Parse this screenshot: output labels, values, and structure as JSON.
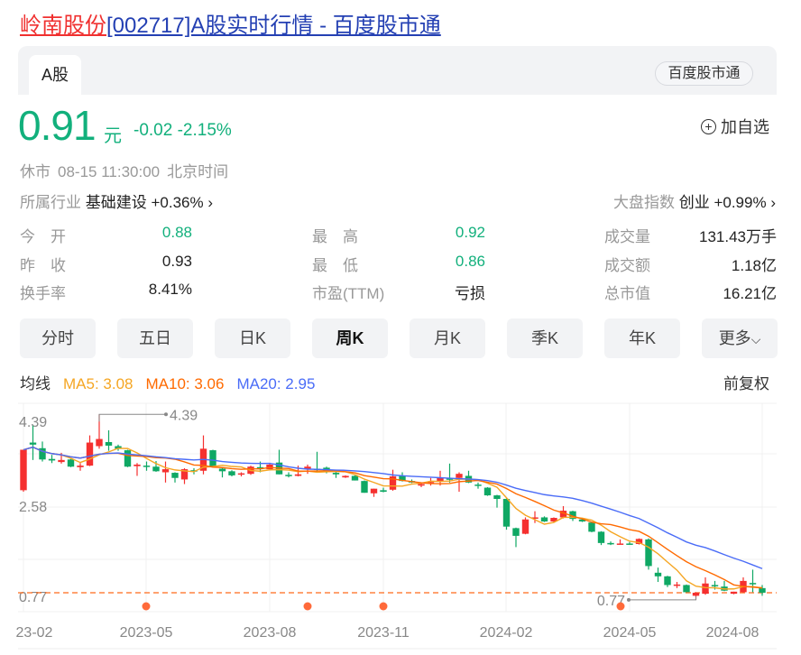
{
  "title": {
    "name": "岭南股份",
    "rest": "[002717]A股实时行情 - 百度股市通"
  },
  "tabs": {
    "active": "A股",
    "badge": "百度股市通"
  },
  "quote": {
    "price": "0.91",
    "unit": "元",
    "change": "-0.02",
    "change_pct": "-2.15%",
    "add_watch": "加自选",
    "add_icon": "plus-circle-icon"
  },
  "status": {
    "state": "休市",
    "time": "08-15 11:30:00",
    "zone": "北京时间"
  },
  "industry": {
    "label": "所属行业",
    "name": "基础建设",
    "change": "+0.36%"
  },
  "index": {
    "label": "大盘指数",
    "name": "创业",
    "change": "+0.99%"
  },
  "stats": [
    [
      {
        "label": "今　开",
        "value": "0.88",
        "color": "green"
      },
      {
        "label": "最　高",
        "value": "0.92",
        "color": "green"
      },
      {
        "label": "成交量",
        "value": "131.43万手",
        "color": "dark"
      }
    ],
    [
      {
        "label": "昨　收",
        "value": "0.93",
        "color": "dark"
      },
      {
        "label": "最　低",
        "value": "0.86",
        "color": "green"
      },
      {
        "label": "成交额",
        "value": "1.18亿",
        "color": "dark"
      }
    ],
    [
      {
        "label": "换手率",
        "value": "8.41%",
        "color": "dark"
      },
      {
        "label": "市盈(TTM)",
        "value": "亏损",
        "color": "dark"
      },
      {
        "label": "总市值",
        "value": "16.21亿",
        "color": "dark"
      }
    ]
  ],
  "periods": [
    "分时",
    "五日",
    "日K",
    "周K",
    "月K",
    "季K",
    "年K",
    "更多"
  ],
  "active_period": "周K",
  "ma_legend": {
    "label": "均线",
    "ma5": "MA5: 3.08",
    "ma10": "MA10: 3.06",
    "ma20": "MA20: 2.95",
    "adjust": "前复权"
  },
  "colors": {
    "up": "#f5302f",
    "down": "#0fa864",
    "ma5": "#f5a623",
    "ma10": "#ff6a00",
    "ma20": "#4a6cf7",
    "price_green": "#12b07c",
    "title_red": "#f0302f",
    "title_blue": "#2440b3"
  },
  "chart_data": {
    "type": "candlestick",
    "period": "weekly",
    "y_ticks": [
      "4.39",
      "2.58",
      "0.77"
    ],
    "x_ticks": [
      "23-02",
      "2023-05",
      "2023-08",
      "2023-11",
      "2024-02",
      "2024-05",
      "2024-08"
    ],
    "max_marker": "4.39",
    "min_marker": "0.77",
    "current_price_line": 0.91,
    "ylim": [
      0.77,
      4.39
    ],
    "columns": [
      "open",
      "high",
      "low",
      "close"
    ],
    "candles": [
      [
        2.91,
        3.7,
        2.88,
        3.7
      ],
      [
        3.84,
        4.17,
        3.5,
        3.8
      ],
      [
        3.73,
        3.86,
        3.47,
        3.51
      ],
      [
        3.52,
        3.6,
        3.44,
        3.49
      ],
      [
        3.46,
        3.64,
        3.43,
        3.5
      ],
      [
        3.51,
        3.52,
        3.36,
        3.37
      ],
      [
        3.36,
        3.44,
        3.29,
        3.39
      ],
      [
        3.39,
        3.98,
        3.38,
        3.84
      ],
      [
        3.77,
        4.39,
        3.72,
        3.91
      ],
      [
        3.85,
        4.08,
        3.68,
        3.78
      ],
      [
        3.77,
        3.8,
        3.68,
        3.72
      ],
      [
        3.69,
        3.7,
        3.36,
        3.37
      ],
      [
        3.38,
        3.44,
        3.19,
        3.41
      ],
      [
        3.39,
        3.47,
        3.29,
        3.37
      ],
      [
        3.37,
        3.48,
        3.27,
        3.28
      ],
      [
        3.26,
        3.47,
        3.06,
        3.32
      ],
      [
        3.25,
        3.26,
        3.06,
        3.15
      ],
      [
        3.12,
        3.34,
        3.03,
        3.32
      ],
      [
        3.3,
        3.34,
        3.22,
        3.29
      ],
      [
        3.29,
        3.98,
        3.22,
        3.72
      ],
      [
        3.69,
        3.7,
        3.37,
        3.38
      ],
      [
        3.33,
        3.36,
        3.16,
        3.28
      ],
      [
        3.28,
        3.3,
        3.18,
        3.2
      ],
      [
        3.22,
        3.26,
        3.18,
        3.24
      ],
      [
        3.23,
        3.39,
        3.21,
        3.37
      ],
      [
        3.36,
        3.47,
        3.26,
        3.32
      ],
      [
        3.32,
        3.44,
        3.3,
        3.41
      ],
      [
        3.45,
        3.7,
        3.22,
        3.22
      ],
      [
        3.21,
        3.26,
        3.16,
        3.19
      ],
      [
        3.19,
        3.39,
        3.18,
        3.22
      ],
      [
        3.33,
        3.41,
        3.23,
        3.37
      ],
      [
        3.33,
        3.66,
        3.26,
        3.31
      ],
      [
        3.35,
        3.37,
        3.24,
        3.26
      ],
      [
        3.25,
        3.29,
        3.15,
        3.22
      ],
      [
        3.16,
        3.2,
        3.15,
        3.19
      ],
      [
        3.19,
        3.2,
        3.1,
        3.1
      ],
      [
        3.09,
        3.1,
        2.86,
        2.86
      ],
      [
        2.85,
        2.94,
        2.78,
        2.94
      ],
      [
        2.91,
        2.96,
        2.87,
        2.88
      ],
      [
        2.92,
        3.31,
        2.9,
        3.18
      ],
      [
        3.19,
        3.26,
        3.08,
        3.09
      ],
      [
        3.09,
        3.12,
        3.05,
        3.06
      ],
      [
        3.0,
        3.04,
        2.97,
        3.03
      ],
      [
        3.05,
        3.15,
        3.0,
        3.07
      ],
      [
        3.08,
        3.29,
        3.0,
        3.16
      ],
      [
        3.14,
        3.43,
        3.06,
        3.13
      ],
      [
        3.15,
        3.26,
        2.88,
        3.23
      ],
      [
        3.19,
        3.29,
        3.05,
        3.06
      ],
      [
        3.02,
        3.06,
        2.94,
        3.0
      ],
      [
        2.96,
        2.97,
        2.8,
        2.81
      ],
      [
        2.81,
        2.82,
        2.57,
        2.74
      ],
      [
        2.74,
        2.75,
        2.14,
        2.2
      ],
      [
        2.17,
        2.18,
        1.8,
        2.02
      ],
      [
        2.06,
        2.38,
        2.05,
        2.34
      ],
      [
        2.36,
        2.5,
        2.27,
        2.38
      ],
      [
        2.38,
        2.4,
        2.29,
        2.3
      ],
      [
        2.3,
        2.38,
        2.29,
        2.37
      ],
      [
        2.38,
        2.6,
        2.36,
        2.51
      ],
      [
        2.5,
        2.51,
        2.31,
        2.35
      ],
      [
        2.34,
        2.36,
        2.29,
        2.3
      ],
      [
        2.28,
        2.29,
        2.09,
        2.1
      ],
      [
        2.1,
        2.11,
        1.84,
        1.88
      ],
      [
        1.88,
        1.91,
        1.84,
        1.87
      ],
      [
        1.86,
        1.95,
        1.85,
        1.87
      ],
      [
        1.87,
        1.9,
        1.85,
        1.86
      ],
      [
        1.86,
        1.97,
        1.85,
        1.96
      ],
      [
        1.95,
        1.97,
        1.36,
        1.43
      ],
      [
        1.3,
        1.4,
        1.12,
        1.23
      ],
      [
        1.23,
        1.24,
        1.02,
        1.06
      ],
      [
        1.05,
        1.12,
        1.0,
        1.07
      ],
      [
        1.06,
        1.07,
        0.92,
        0.92
      ],
      [
        0.85,
        0.92,
        0.77,
        0.91
      ],
      [
        0.89,
        1.21,
        0.87,
        1.09
      ],
      [
        1.06,
        1.14,
        0.97,
        1.04
      ],
      [
        1.03,
        1.14,
        0.94,
        0.95
      ],
      [
        0.89,
        0.93,
        0.88,
        0.93
      ],
      [
        0.92,
        1.21,
        0.91,
        1.14
      ],
      [
        1.1,
        1.36,
        0.92,
        1.08
      ],
      [
        1.0,
        1.06,
        0.85,
        0.91
      ]
    ]
  }
}
